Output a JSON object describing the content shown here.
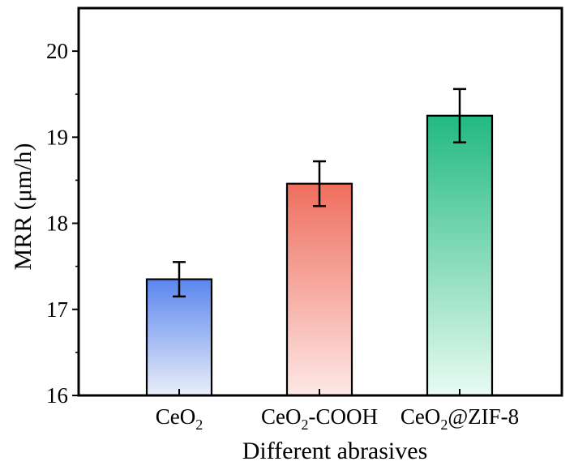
{
  "chart_data": {
    "type": "bar",
    "categories": [
      "CeO2",
      "CeO2-COOH",
      "CeO2@ZIF-8"
    ],
    "category_labels": [
      {
        "main": "CeO",
        "sub": "2",
        "suffix": ""
      },
      {
        "main": "CeO",
        "sub": "2",
        "suffix": "-COOH"
      },
      {
        "main": "CeO",
        "sub": "2",
        "suffix": "@ZIF-8"
      }
    ],
    "values": [
      17.35,
      18.46,
      19.25
    ],
    "errors": [
      0.2,
      0.26,
      0.31
    ],
    "xlabel": "Different abrasives",
    "ylabel": "MRR (μm/h)",
    "ylim": [
      16,
      20.5
    ],
    "yticks": [
      16,
      17,
      18,
      19,
      20
    ],
    "grid": false,
    "bar_colors": [
      {
        "top": "#5b86ee",
        "bottom": "#e9eef9"
      },
      {
        "top": "#ef6e5e",
        "bottom": "#fde8e6"
      },
      {
        "top": "#22b982",
        "bottom": "#e8fbf3"
      }
    ]
  }
}
